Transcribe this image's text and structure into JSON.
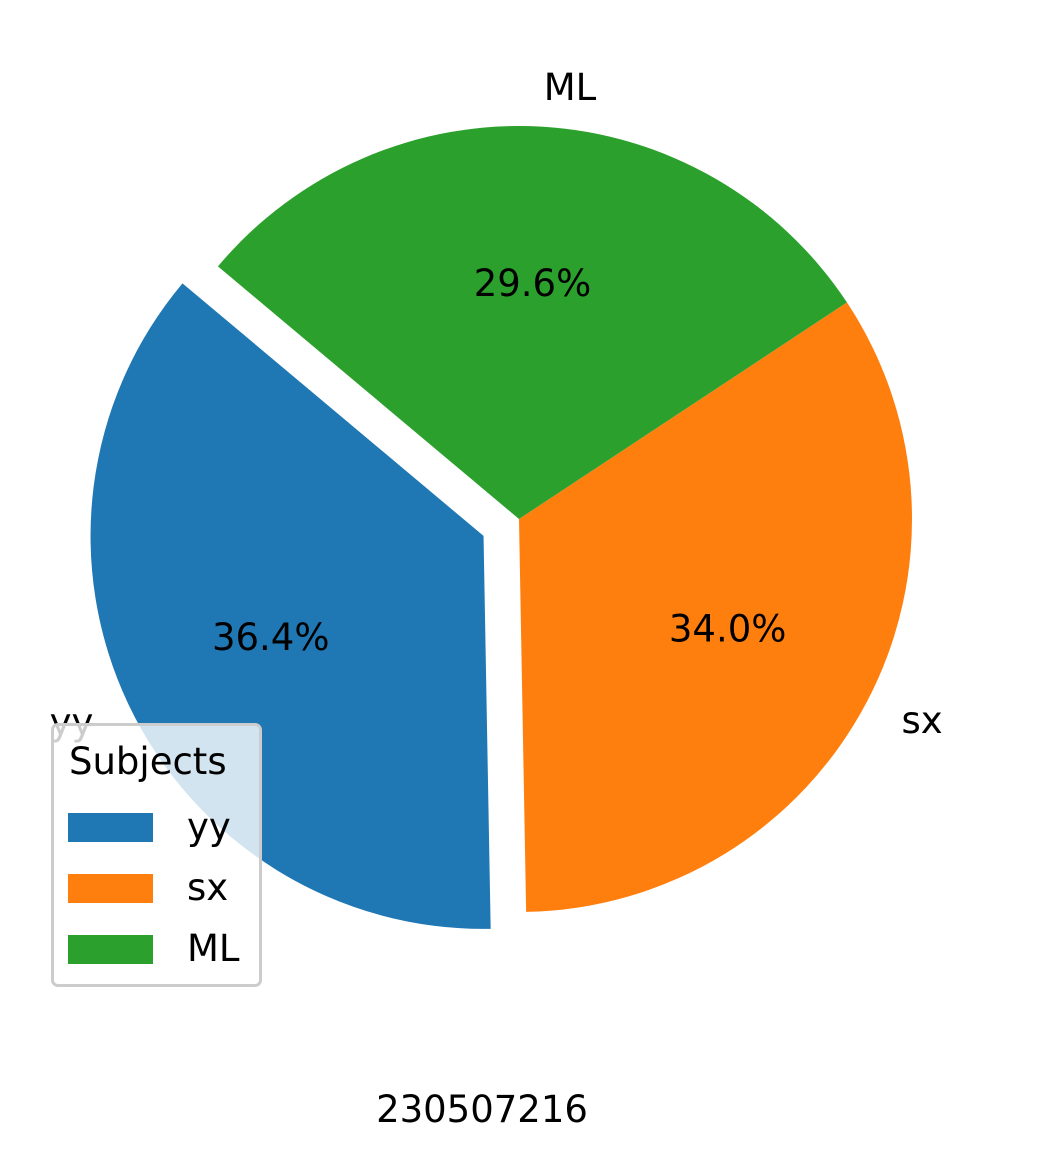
{
  "chart_data": {
    "type": "pie",
    "categories": [
      "yy",
      "sx",
      "ML"
    ],
    "values": [
      36.4,
      34.0,
      29.6
    ],
    "percent_labels": [
      "36.4%",
      "34.0%",
      "29.6%"
    ],
    "colors": [
      "#1f77b4",
      "#ff7f0e",
      "#2ca02c"
    ],
    "exploded": [
      "yy"
    ],
    "legend": {
      "title": "Subjects",
      "entries": [
        "yy",
        "sx",
        "ML"
      ],
      "placement": "lower-left"
    },
    "caption": "230507216"
  }
}
